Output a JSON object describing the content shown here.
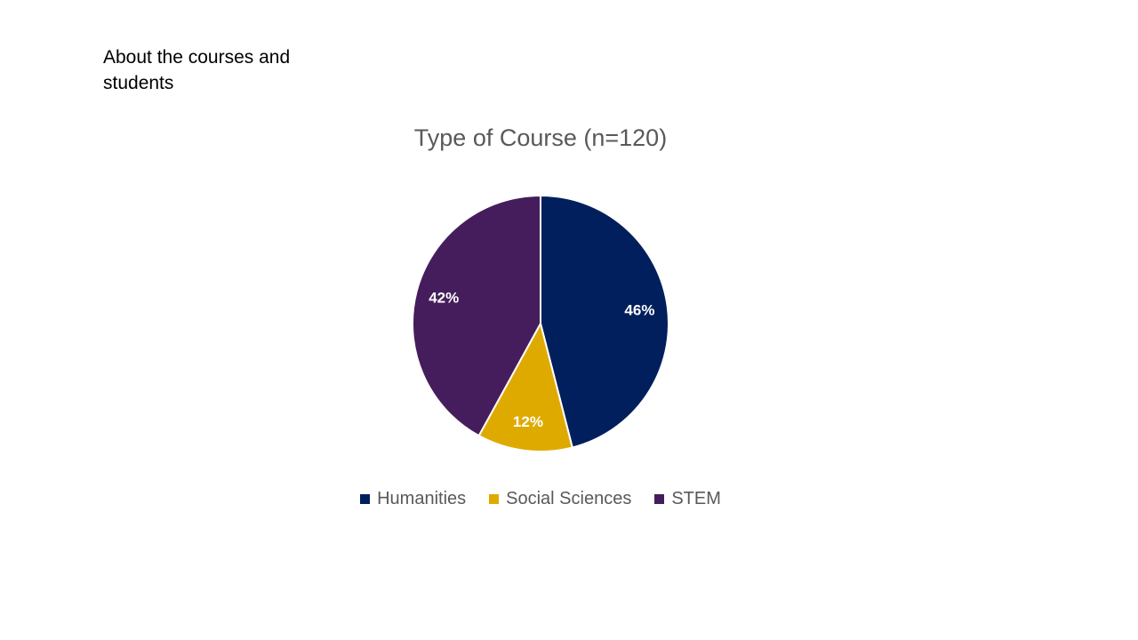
{
  "slide": {
    "heading": "About the courses and\nstudents"
  },
  "chart_data": {
    "type": "pie",
    "title": "Type of Course (n=120)",
    "legend_position": "bottom",
    "slices": [
      {
        "name": "Humanities",
        "value": 46,
        "label": "46%",
        "color": "#001f5c"
      },
      {
        "name": "Social Sciences",
        "value": 12,
        "label": "12%",
        "color": "#dfaa00"
      },
      {
        "name": "STEM",
        "value": 42,
        "label": "42%",
        "color": "#451d5c"
      }
    ]
  }
}
